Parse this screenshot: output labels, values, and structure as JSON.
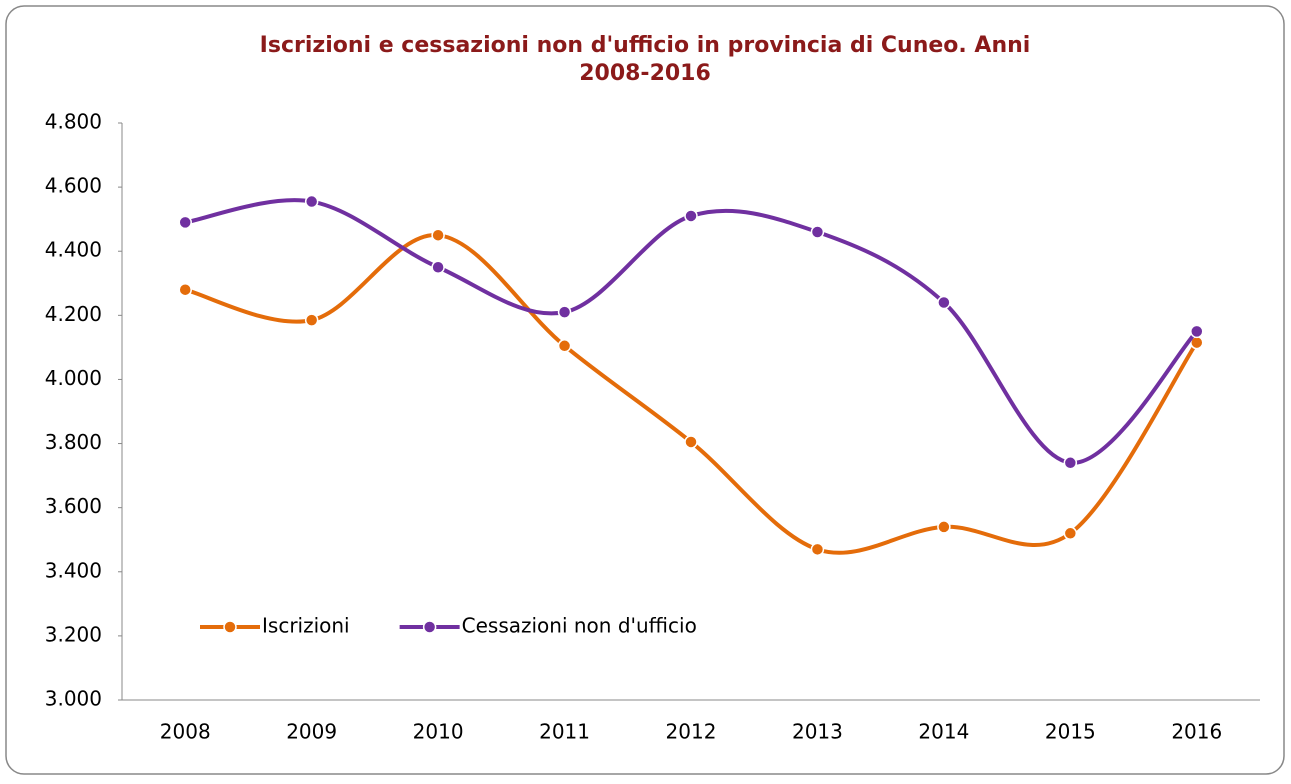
{
  "chart_data": {
    "type": "line",
    "smooth": true,
    "title": "Iscrizioni e cessazioni non d'ufficio in provincia di Cuneo. Anni 2008-2016",
    "categories": [
      "2008",
      "2009",
      "2010",
      "2011",
      "2012",
      "2013",
      "2014",
      "2015",
      "2016"
    ],
    "series": [
      {
        "name": "Iscrizioni",
        "color": "#e46c0a",
        "values": [
          4280,
          4185,
          4450,
          4105,
          3805,
          3470,
          3540,
          3520,
          4115
        ]
      },
      {
        "name": "Cessazioni non d'ufficio",
        "color": "#7030a0",
        "values": [
          4490,
          4555,
          4350,
          4210,
          4510,
          4460,
          4240,
          3740,
          4150
        ]
      }
    ],
    "ylim": [
      3000,
      4800
    ],
    "yticks": [
      {
        "value": 3000,
        "label": "3.000"
      },
      {
        "value": 3200,
        "label": "3.200"
      },
      {
        "value": 3400,
        "label": "3.400"
      },
      {
        "value": 3600,
        "label": "3.600"
      },
      {
        "value": 3800,
        "label": "3.800"
      },
      {
        "value": 4000,
        "label": "4.000"
      },
      {
        "value": 4200,
        "label": "4.200"
      },
      {
        "value": 4400,
        "label": "4.400"
      },
      {
        "value": 4600,
        "label": "4.600"
      },
      {
        "value": 4800,
        "label": "4.800"
      }
    ],
    "grid": false,
    "legend": "lower left"
  }
}
